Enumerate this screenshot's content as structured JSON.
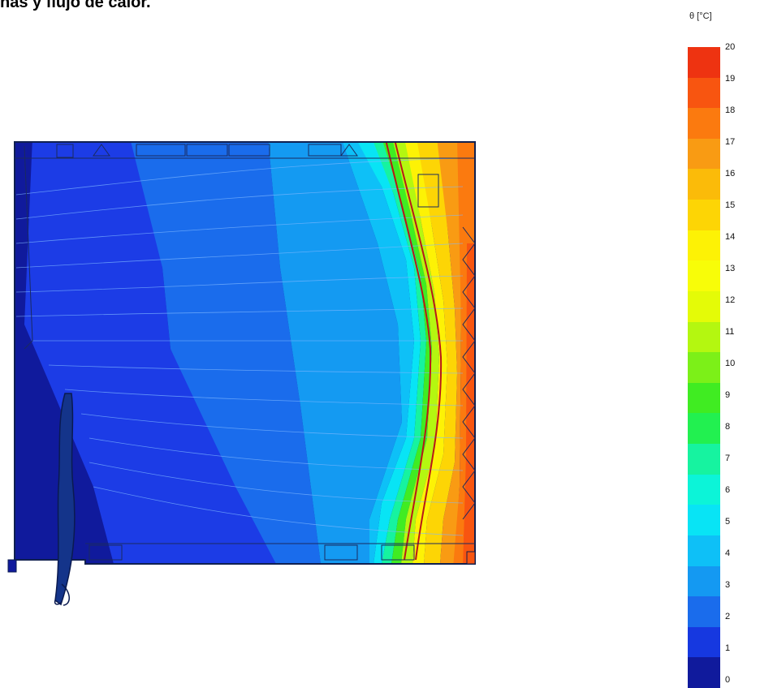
{
  "title": "nas y flujo de calor.",
  "legend": {
    "unit": "θ [°C]",
    "ticks": [
      "20",
      "19",
      "18",
      "17",
      "16",
      "15",
      "14",
      "13",
      "12",
      "11",
      "10",
      "9",
      "8",
      "7",
      "6",
      "5",
      "4",
      "3",
      "2",
      "1",
      "0"
    ],
    "colors": [
      "#ee3311",
      "#f85510",
      "#fb7a0f",
      "#f99b13",
      "#fbbb09",
      "#fdd505",
      "#fdf205",
      "#f8fd08",
      "#e4fb07",
      "#b4f710",
      "#7cf018",
      "#40ec22",
      "#22f050",
      "#16f3a0",
      "#0cf4d8",
      "#08e4f5",
      "#0ec0f7",
      "#1499f2",
      "#1a6cec",
      "#1638e0",
      "#101a9c"
    ]
  },
  "chart_data": {
    "type": "heatmap",
    "description_values": {
      "scale_min": 0,
      "scale_max": 20,
      "step": 1
    }
  }
}
